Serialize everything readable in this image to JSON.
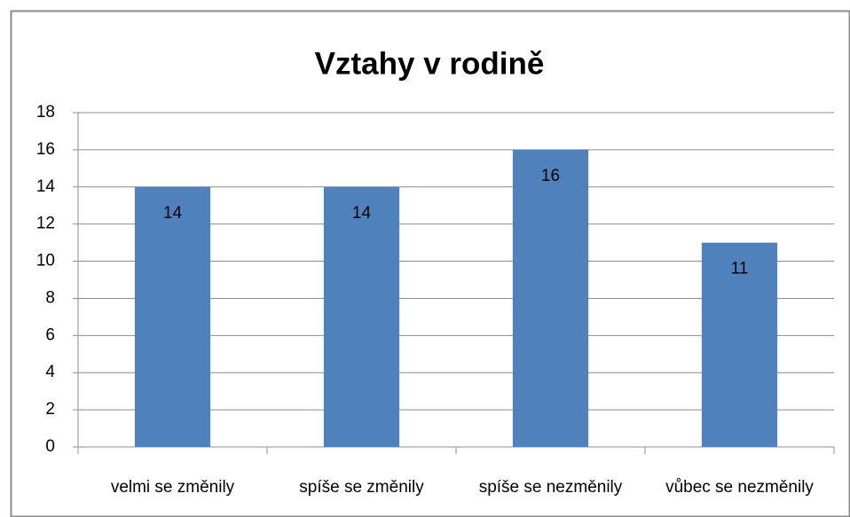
{
  "chart_data": {
    "type": "bar",
    "title": "Vztahy v rodině",
    "categories": [
      "velmi se změnily",
      "spíše se změnily",
      "spíše se nezměnily",
      "vůbec se nezměnily"
    ],
    "values": [
      14,
      14,
      16,
      11
    ],
    "color": "#4f81bd",
    "ylim": [
      0,
      18
    ],
    "yticks": [
      0,
      2,
      4,
      6,
      8,
      10,
      12,
      14,
      16,
      18
    ],
    "grid": true,
    "data_labels": true
  }
}
